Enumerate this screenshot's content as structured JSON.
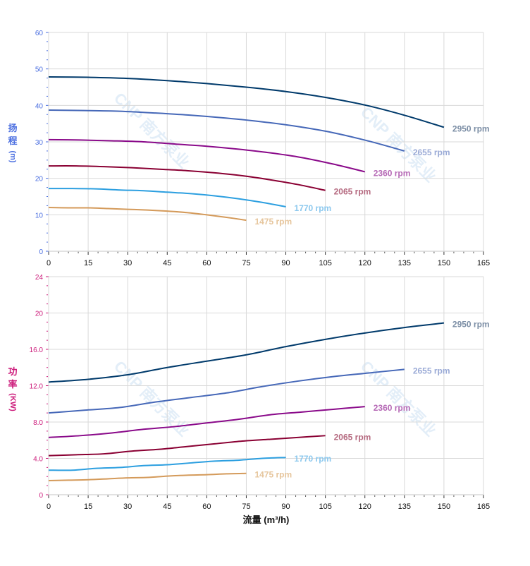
{
  "watermark": "CNP 南方泵业",
  "colors": {
    "grid": "#d9d9d9",
    "head_axis": "#4a6ee0",
    "power_axis": "#cc1a7a"
  },
  "chart_data": [
    {
      "type": "line",
      "ylabel_chars": [
        "扬",
        "程"
      ],
      "ylabel_unit": "(m)",
      "xlim": [
        0,
        165
      ],
      "ylim": [
        0,
        60
      ],
      "grid": true,
      "x_ticks": [
        "0",
        "15",
        "30",
        "45",
        "60",
        "75",
        "90",
        "105",
        "120",
        "135",
        "150",
        "165"
      ],
      "y_ticks": [
        "0",
        "10",
        "20",
        "30",
        "40",
        "50",
        "60"
      ],
      "series": [
        {
          "name": "2950 rpm",
          "color": "#003a6b",
          "label_color": "#7d8fa6",
          "x": [
            0,
            15,
            30,
            45,
            60,
            75,
            90,
            105,
            120,
            135,
            150
          ],
          "y": [
            47.8,
            47.7,
            47.4,
            46.8,
            46.0,
            45.0,
            43.8,
            42.2,
            40.1,
            37.3,
            34.0
          ]
        },
        {
          "name": "2655 rpm",
          "color": "#4668b8",
          "label_color": "#9aaad6",
          "x": [
            0,
            13.5,
            27,
            40.5,
            54,
            67.5,
            81,
            94.5,
            108,
            121.5,
            135
          ],
          "y": [
            38.7,
            38.6,
            38.4,
            37.9,
            37.3,
            36.5,
            35.5,
            34.2,
            32.5,
            30.2,
            27.5
          ]
        },
        {
          "name": "2360 rpm",
          "color": "#8a0a8a",
          "label_color": "#b66ab6",
          "x": [
            0,
            12,
            24,
            36,
            48,
            60,
            72,
            84,
            96,
            108,
            120
          ],
          "y": [
            30.6,
            30.5,
            30.3,
            30.0,
            29.4,
            28.8,
            28.0,
            27.0,
            25.7,
            23.9,
            21.8
          ]
        },
        {
          "name": "2065 rpm",
          "color": "#8a0033",
          "label_color": "#b56a80",
          "x": [
            0,
            10.5,
            21,
            31.5,
            42,
            52.5,
            63,
            73.5,
            84,
            94.5,
            105
          ],
          "y": [
            23.4,
            23.4,
            23.2,
            22.9,
            22.5,
            22.1,
            21.5,
            20.7,
            19.6,
            18.3,
            16.7
          ]
        },
        {
          "name": "1770 rpm",
          "color": "#2c9fe0",
          "label_color": "#8cc8ee",
          "x": [
            0,
            9,
            18,
            27,
            36,
            45,
            54,
            63,
            72,
            81,
            90
          ],
          "y": [
            17.2,
            17.2,
            17.1,
            16.8,
            16.6,
            16.2,
            15.8,
            15.2,
            14.4,
            13.4,
            12.2
          ]
        },
        {
          "name": "1475 rpm",
          "color": "#d49a5a",
          "label_color": "#e6c59c",
          "x": [
            0,
            7.5,
            15,
            22.5,
            30,
            37.5,
            45,
            52.5,
            60,
            67.5,
            75
          ],
          "y": [
            12.0,
            11.9,
            11.9,
            11.7,
            11.5,
            11.3,
            11.0,
            10.6,
            10.0,
            9.3,
            8.5
          ]
        }
      ]
    },
    {
      "type": "line",
      "ylabel_chars": [
        "功",
        "率"
      ],
      "ylabel_unit": "(KW)",
      "xlabel": "流量 (m³/h)",
      "xlim": [
        0,
        165
      ],
      "ylim": [
        0,
        24
      ],
      "grid": true,
      "x_ticks": [
        "0",
        "15",
        "30",
        "45",
        "60",
        "75",
        "90",
        "105",
        "120",
        "135",
        "150",
        "165"
      ],
      "y_ticks": [
        "0",
        "4.0",
        "8.0",
        "12.0",
        "16.0",
        "20",
        "24"
      ],
      "series": [
        {
          "name": "2950 rpm",
          "color": "#003a6b",
          "label_color": "#7d8fa6",
          "x": [
            0,
            15,
            30,
            45,
            60,
            75,
            90,
            105,
            120,
            135,
            150
          ],
          "y": [
            12.4,
            12.7,
            13.2,
            14.0,
            14.7,
            15.4,
            16.3,
            17.1,
            17.8,
            18.4,
            18.9
          ]
        },
        {
          "name": "2655 rpm",
          "color": "#4668b8",
          "label_color": "#9aaad6",
          "x": [
            0,
            13.5,
            27,
            40.5,
            54,
            67.5,
            81,
            94.5,
            108,
            121.5,
            135
          ],
          "y": [
            9.0,
            9.3,
            9.6,
            10.2,
            10.7,
            11.2,
            11.9,
            12.5,
            13.0,
            13.4,
            13.8
          ]
        },
        {
          "name": "2360 rpm",
          "color": "#8a0a8a",
          "label_color": "#b66ab6",
          "x": [
            0,
            12,
            24,
            36,
            48,
            60,
            72,
            84,
            96,
            108,
            120
          ],
          "y": [
            6.3,
            6.5,
            6.8,
            7.2,
            7.5,
            7.9,
            8.3,
            8.8,
            9.1,
            9.4,
            9.7
          ]
        },
        {
          "name": "2065 rpm",
          "color": "#8a0033",
          "label_color": "#b56a80",
          "x": [
            0,
            10.5,
            21,
            31.5,
            42,
            52.5,
            63,
            73.5,
            84,
            94.5,
            105
          ],
          "y": [
            4.3,
            4.4,
            4.5,
            4.8,
            5.0,
            5.3,
            5.6,
            5.9,
            6.1,
            6.3,
            6.5
          ]
        },
        {
          "name": "1770 rpm",
          "color": "#2c9fe0",
          "label_color": "#8cc8ee",
          "x": [
            0,
            9,
            18,
            27,
            36,
            45,
            54,
            63,
            72,
            81,
            90
          ],
          "y": [
            2.7,
            2.7,
            2.9,
            3.0,
            3.2,
            3.3,
            3.5,
            3.7,
            3.8,
            4.0,
            4.1
          ]
        },
        {
          "name": "1475 rpm",
          "color": "#d49a5a",
          "label_color": "#e6c59c",
          "x": [
            0,
            7.5,
            15,
            22.5,
            30,
            37.5,
            45,
            52.5,
            60,
            67.5,
            75
          ],
          "y": [
            1.55,
            1.6,
            1.65,
            1.75,
            1.85,
            1.9,
            2.05,
            2.15,
            2.2,
            2.3,
            2.35
          ]
        }
      ]
    }
  ]
}
